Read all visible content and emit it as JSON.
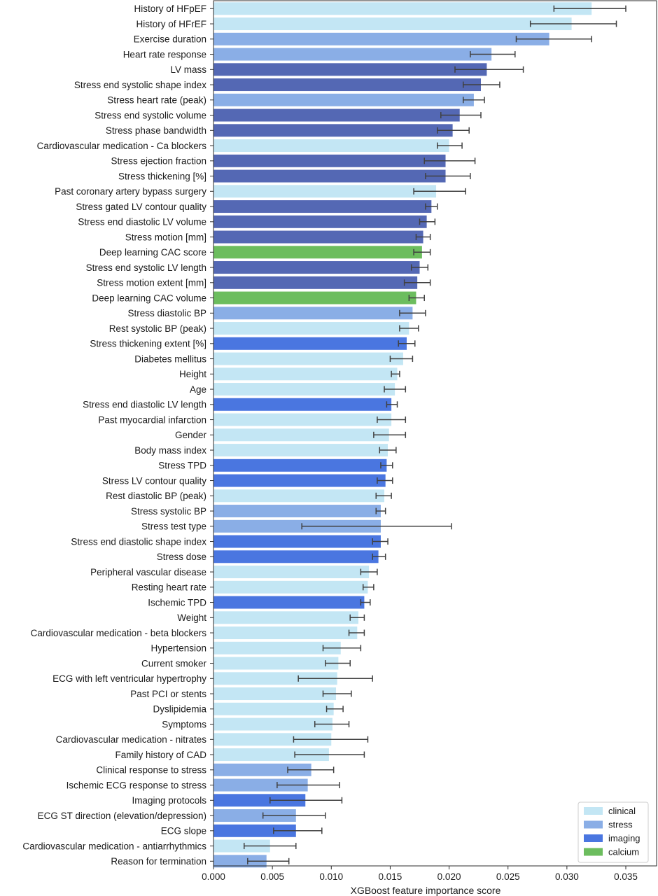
{
  "chart_data": {
    "type": "bar",
    "orientation": "horizontal",
    "xlabel": "XGBoost feature importance score",
    "ylabel": "",
    "xlim": [
      0,
      0.0375
    ],
    "xticks": [
      "0.000",
      "0.005",
      "0.010",
      "0.015",
      "0.020",
      "0.025",
      "0.030",
      "0.035"
    ],
    "grid": false,
    "legend": {
      "placement": "bottom-right",
      "entries": [
        {
          "name": "clinical",
          "color": "#c3e6f4"
        },
        {
          "name": "stress",
          "color": "#8aaee6"
        },
        {
          "name": "imaging",
          "color": "#4a76e0"
        },
        {
          "name": "calcium",
          "color": "#6cbd5e"
        }
      ]
    },
    "group_colors": {
      "clinical": "#c3e6f4",
      "stress": "#8aaee6",
      "imaging": "#4a76e0",
      "imaging_dark": "#5468b4",
      "calcium": "#6cbd5e",
      "errorbar": "#404040"
    },
    "bars": [
      {
        "label": "History of HFpEF",
        "value": 0.0321,
        "err_low": 0.0289,
        "err_high": 0.035,
        "group": "clinical"
      },
      {
        "label": "History of HFrEF",
        "value": 0.0304,
        "err_low": 0.0269,
        "err_high": 0.0342,
        "group": "clinical"
      },
      {
        "label": "Exercise duration",
        "value": 0.0285,
        "err_low": 0.0257,
        "err_high": 0.0321,
        "group": "stress"
      },
      {
        "label": "Heart rate response",
        "value": 0.0236,
        "err_low": 0.0218,
        "err_high": 0.0256,
        "group": "stress"
      },
      {
        "label": "LV mass",
        "value": 0.0232,
        "err_low": 0.0205,
        "err_high": 0.0263,
        "group": "imaging_dark"
      },
      {
        "label": "Stress end systolic shape index",
        "value": 0.0227,
        "err_low": 0.0212,
        "err_high": 0.0243,
        "group": "imaging_dark"
      },
      {
        "label": "Stress heart rate (peak)",
        "value": 0.0221,
        "err_low": 0.0212,
        "err_high": 0.023,
        "group": "stress"
      },
      {
        "label": "Stress end systolic volume",
        "value": 0.0209,
        "err_low": 0.0193,
        "err_high": 0.0227,
        "group": "imaging_dark"
      },
      {
        "label": "Stress phase bandwidth",
        "value": 0.0203,
        "err_low": 0.019,
        "err_high": 0.0217,
        "group": "imaging_dark"
      },
      {
        "label": "Cardiovascular medication - Ca blockers",
        "value": 0.02,
        "err_low": 0.019,
        "err_high": 0.0211,
        "group": "clinical"
      },
      {
        "label": "Stress ejection fraction",
        "value": 0.0197,
        "err_low": 0.0179,
        "err_high": 0.0222,
        "group": "imaging_dark"
      },
      {
        "label": "Stress thickening [%]",
        "value": 0.0197,
        "err_low": 0.018,
        "err_high": 0.0218,
        "group": "imaging_dark"
      },
      {
        "label": "Past coronary artery bypass surgery",
        "value": 0.0189,
        "err_low": 0.017,
        "err_high": 0.0214,
        "group": "clinical"
      },
      {
        "label": "Stress gated LV contour quality",
        "value": 0.0185,
        "err_low": 0.018,
        "err_high": 0.019,
        "group": "imaging_dark"
      },
      {
        "label": "Stress end diastolic LV volume",
        "value": 0.0181,
        "err_low": 0.0175,
        "err_high": 0.0188,
        "group": "imaging_dark"
      },
      {
        "label": "Stress motion [mm]",
        "value": 0.0178,
        "err_low": 0.0172,
        "err_high": 0.0184,
        "group": "imaging_dark"
      },
      {
        "label": "Deep learning CAC score",
        "value": 0.0177,
        "err_low": 0.017,
        "err_high": 0.0184,
        "group": "calcium"
      },
      {
        "label": "Stress end systolic LV length",
        "value": 0.0175,
        "err_low": 0.0168,
        "err_high": 0.0182,
        "group": "imaging_dark"
      },
      {
        "label": "Stress motion extent [mm]",
        "value": 0.0173,
        "err_low": 0.0162,
        "err_high": 0.0184,
        "group": "imaging_dark"
      },
      {
        "label": "Deep learning CAC volume",
        "value": 0.0172,
        "err_low": 0.0166,
        "err_high": 0.0179,
        "group": "calcium"
      },
      {
        "label": "Stress diastolic BP",
        "value": 0.0169,
        "err_low": 0.0158,
        "err_high": 0.018,
        "group": "stress"
      },
      {
        "label": "Rest systolic BP (peak)",
        "value": 0.0166,
        "err_low": 0.0158,
        "err_high": 0.0174,
        "group": "clinical"
      },
      {
        "label": "Stress thickening extent [%]",
        "value": 0.0164,
        "err_low": 0.0157,
        "err_high": 0.0171,
        "group": "imaging"
      },
      {
        "label": "Diabetes mellitus",
        "value": 0.0161,
        "err_low": 0.015,
        "err_high": 0.0169,
        "group": "clinical"
      },
      {
        "label": "Height",
        "value": 0.0156,
        "err_low": 0.0151,
        "err_high": 0.0158,
        "group": "clinical"
      },
      {
        "label": "Age",
        "value": 0.0154,
        "err_low": 0.0145,
        "err_high": 0.0163,
        "group": "clinical"
      },
      {
        "label": "Stress end diastolic LV length",
        "value": 0.0151,
        "err_low": 0.0147,
        "err_high": 0.0156,
        "group": "imaging"
      },
      {
        "label": "Past myocardial infarction",
        "value": 0.0151,
        "err_low": 0.0139,
        "err_high": 0.0163,
        "group": "clinical"
      },
      {
        "label": "Gender",
        "value": 0.0149,
        "err_low": 0.0136,
        "err_high": 0.0163,
        "group": "clinical"
      },
      {
        "label": "Body mass index",
        "value": 0.0148,
        "err_low": 0.0141,
        "err_high": 0.0155,
        "group": "clinical"
      },
      {
        "label": "Stress TPD",
        "value": 0.0147,
        "err_low": 0.0142,
        "err_high": 0.0152,
        "group": "imaging"
      },
      {
        "label": "Stress LV contour quality",
        "value": 0.0146,
        "err_low": 0.0139,
        "err_high": 0.0152,
        "group": "imaging"
      },
      {
        "label": "Rest diastolic BP (peak)",
        "value": 0.0145,
        "err_low": 0.0138,
        "err_high": 0.0151,
        "group": "clinical"
      },
      {
        "label": "Stress systolic BP",
        "value": 0.0142,
        "err_low": 0.0138,
        "err_high": 0.0146,
        "group": "stress"
      },
      {
        "label": "Stress test type",
        "value": 0.0142,
        "err_low": 0.0075,
        "err_high": 0.0202,
        "group": "stress"
      },
      {
        "label": "Stress end diastolic shape index",
        "value": 0.0142,
        "err_low": 0.0135,
        "err_high": 0.0148,
        "group": "imaging"
      },
      {
        "label": "Stress dose",
        "value": 0.014,
        "err_low": 0.0135,
        "err_high": 0.0146,
        "group": "imaging"
      },
      {
        "label": "Peripheral vascular disease",
        "value": 0.0132,
        "err_low": 0.0125,
        "err_high": 0.0139,
        "group": "clinical"
      },
      {
        "label": "Resting heart rate",
        "value": 0.0131,
        "err_low": 0.0127,
        "err_high": 0.0136,
        "group": "clinical"
      },
      {
        "label": "Ischemic TPD",
        "value": 0.0128,
        "err_low": 0.0125,
        "err_high": 0.0133,
        "group": "imaging"
      },
      {
        "label": "Weight",
        "value": 0.0123,
        "err_low": 0.0116,
        "err_high": 0.0128,
        "group": "clinical"
      },
      {
        "label": "Cardiovascular medication - beta blockers",
        "value": 0.0122,
        "err_low": 0.0115,
        "err_high": 0.0128,
        "group": "clinical"
      },
      {
        "label": "Hypertension",
        "value": 0.0108,
        "err_low": 0.0093,
        "err_high": 0.0125,
        "group": "clinical"
      },
      {
        "label": "Current smoker",
        "value": 0.0106,
        "err_low": 0.0095,
        "err_high": 0.0116,
        "group": "clinical"
      },
      {
        "label": "ECG with left ventricular hypertrophy",
        "value": 0.0105,
        "err_low": 0.0072,
        "err_high": 0.0135,
        "group": "clinical"
      },
      {
        "label": "Past PCI or stents",
        "value": 0.0104,
        "err_low": 0.0093,
        "err_high": 0.0117,
        "group": "clinical"
      },
      {
        "label": "Dyslipidemia",
        "value": 0.0102,
        "err_low": 0.0096,
        "err_high": 0.011,
        "group": "clinical"
      },
      {
        "label": "Symptoms",
        "value": 0.0101,
        "err_low": 0.0086,
        "err_high": 0.0115,
        "group": "clinical"
      },
      {
        "label": "Cardiovascular medication - nitrates",
        "value": 0.01,
        "err_low": 0.0068,
        "err_high": 0.0131,
        "group": "clinical"
      },
      {
        "label": "Family history of CAD",
        "value": 0.0098,
        "err_low": 0.0069,
        "err_high": 0.0128,
        "group": "clinical"
      },
      {
        "label": "Clinical response to stress",
        "value": 0.0083,
        "err_low": 0.0063,
        "err_high": 0.0102,
        "group": "stress"
      },
      {
        "label": "Ischemic ECG response to stress",
        "value": 0.008,
        "err_low": 0.0054,
        "err_high": 0.0107,
        "group": "stress"
      },
      {
        "label": "Imaging protocols",
        "value": 0.0078,
        "err_low": 0.0048,
        "err_high": 0.0109,
        "group": "imaging"
      },
      {
        "label": "ECG ST direction (elevation/depression)",
        "value": 0.007,
        "err_low": 0.0042,
        "err_high": 0.0095,
        "group": "stress"
      },
      {
        "label": "ECG slope",
        "value": 0.007,
        "err_low": 0.0051,
        "err_high": 0.0092,
        "group": "imaging"
      },
      {
        "label": "Cardiovascular medication - antiarrhythmics",
        "value": 0.0048,
        "err_low": 0.0026,
        "err_high": 0.007,
        "group": "clinical"
      },
      {
        "label": "Reason for termination",
        "value": 0.0045,
        "err_low": 0.0029,
        "err_high": 0.0064,
        "group": "stress"
      }
    ]
  }
}
